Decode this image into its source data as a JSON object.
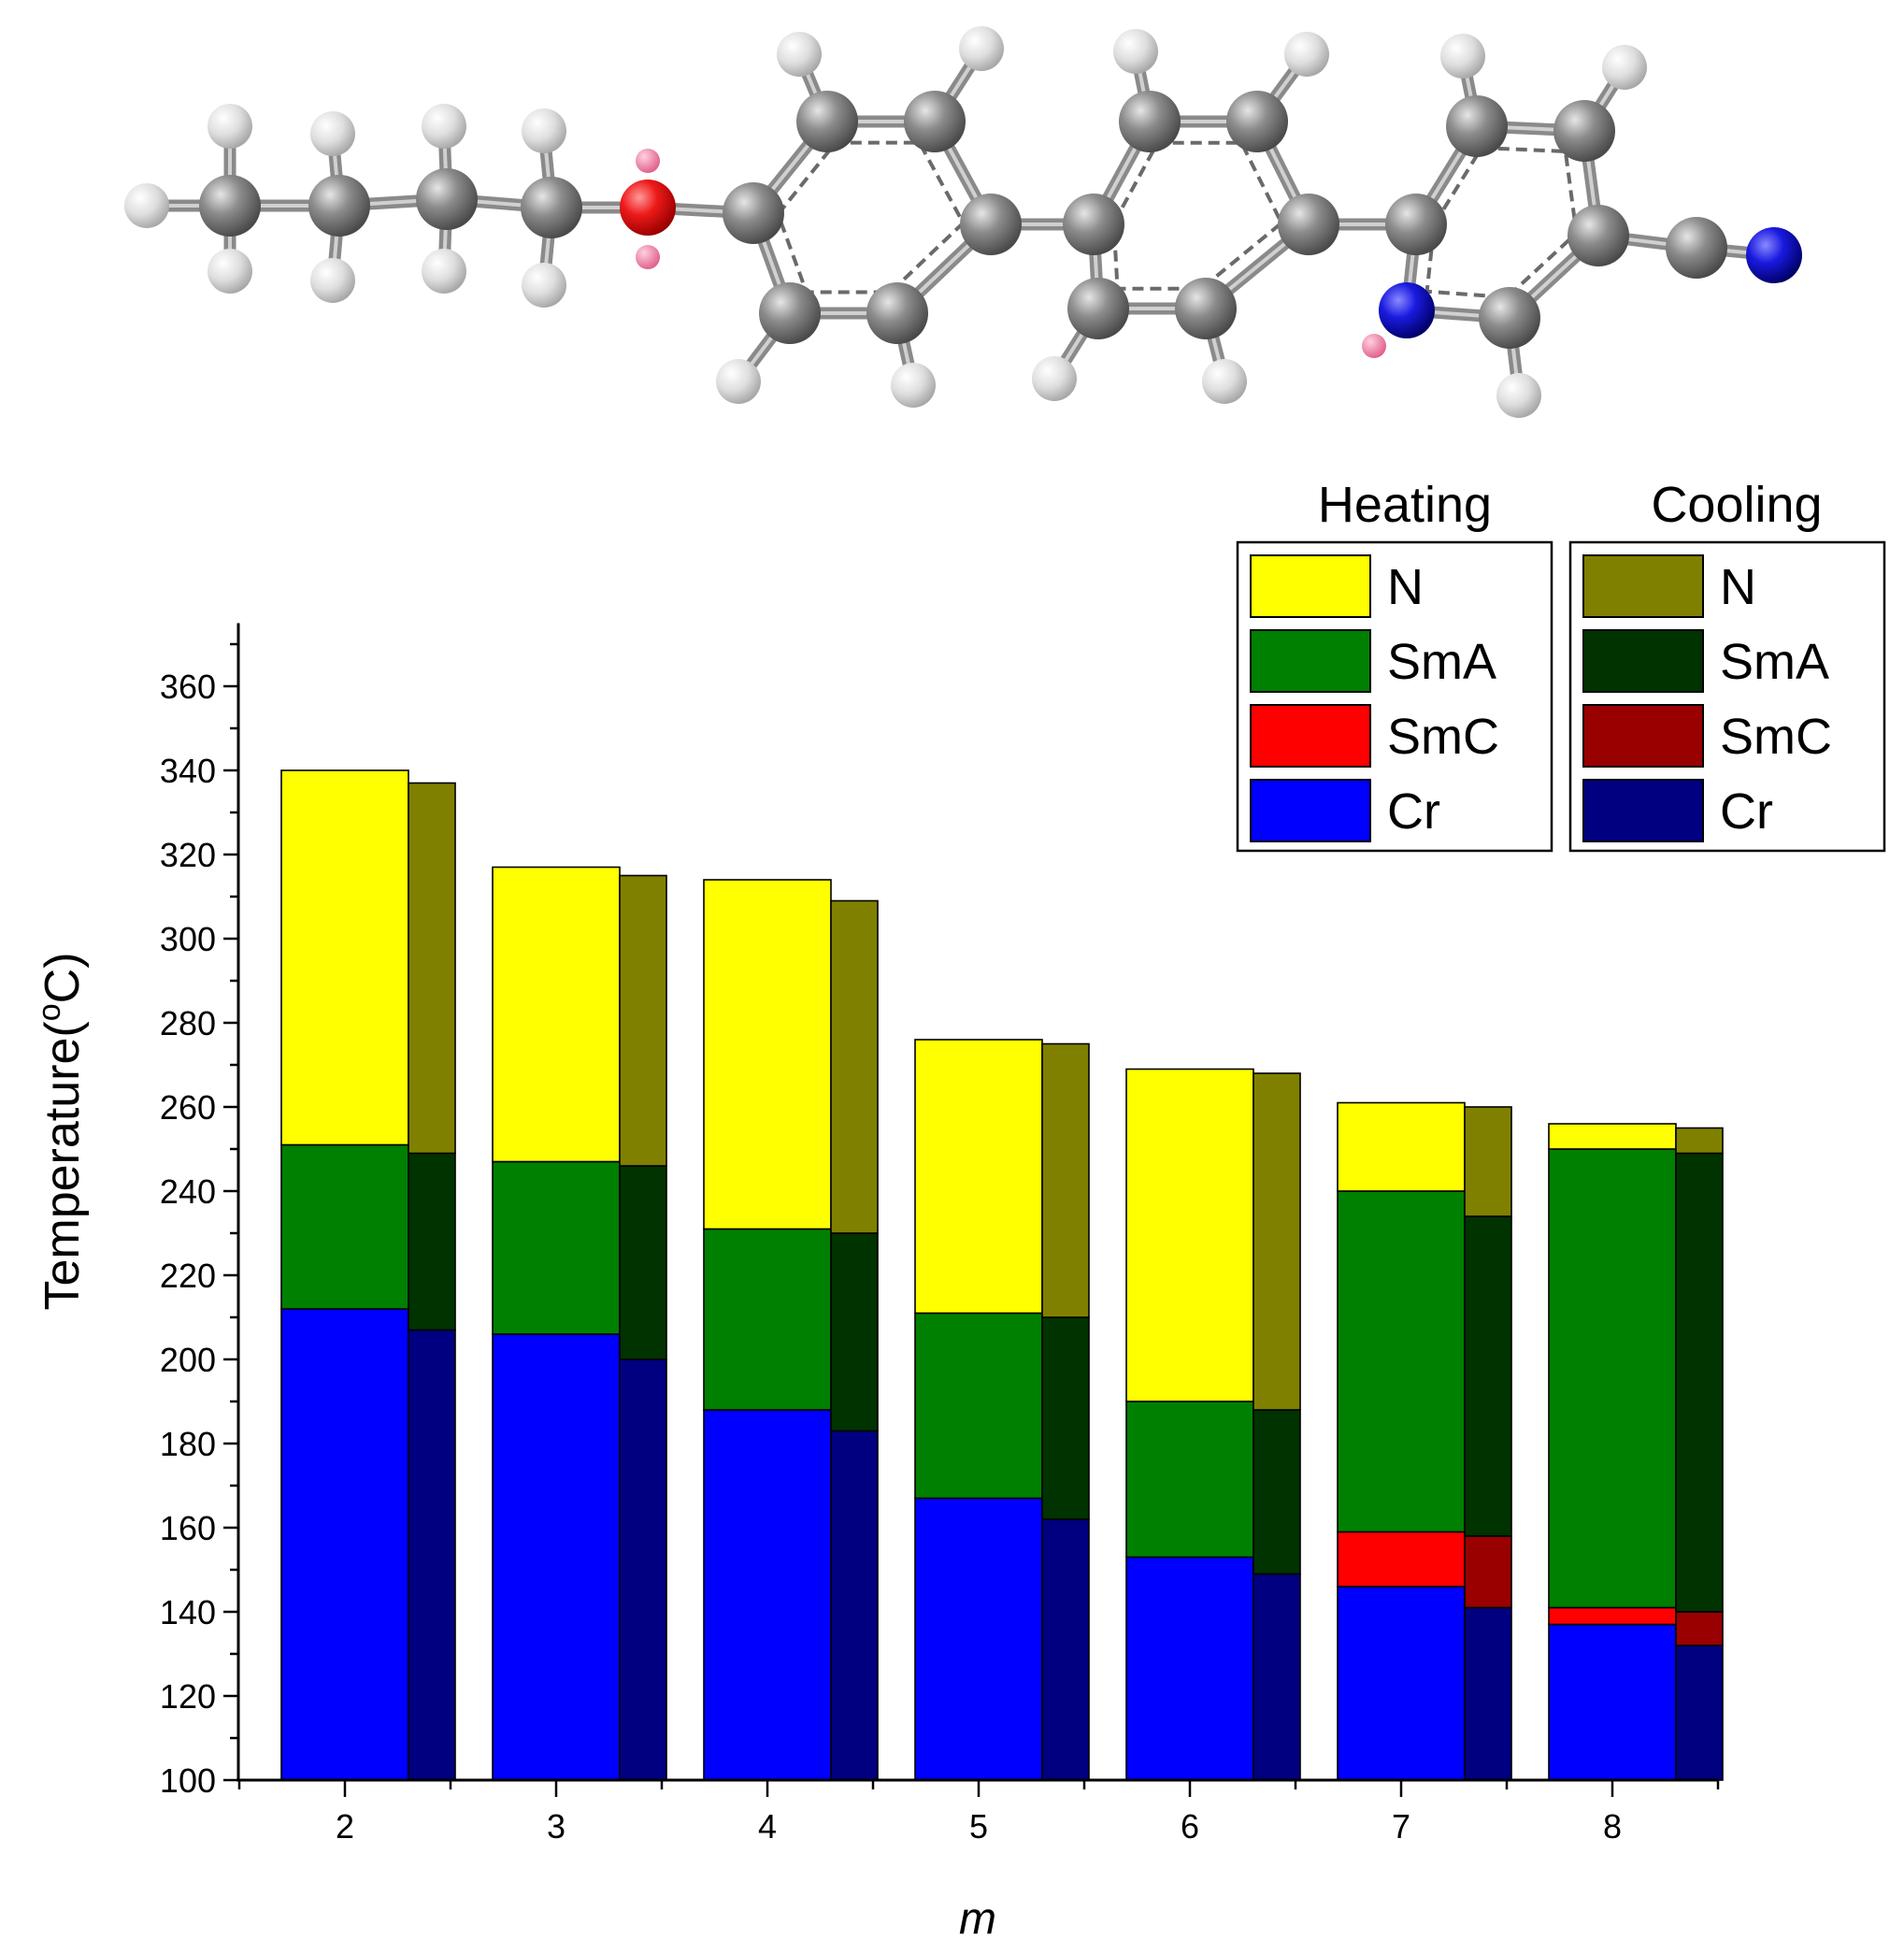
{
  "chart_data": {
    "type": "bar",
    "subtype": "stacked paired bars (heating / cooling) showing phase ranges",
    "title": "",
    "xlabel": "m",
    "ylabel": "Temperature(°C)",
    "ylabel_parts": {
      "prefix": "Temperature(",
      "superscript": "o",
      "suffix": "C)"
    },
    "ylim": [
      100,
      375
    ],
    "yticks": [
      100,
      120,
      140,
      160,
      180,
      200,
      220,
      240,
      260,
      280,
      300,
      320,
      340,
      360
    ],
    "categories": [
      "2",
      "3",
      "4",
      "5",
      "6",
      "7",
      "8"
    ],
    "grid": false,
    "legend_placement": "top-right",
    "phases": [
      "N",
      "SmA",
      "SmC",
      "Cr"
    ],
    "groups": [
      {
        "name": "Heating",
        "colors": {
          "N": "#ffff00",
          "SmA": "#008000",
          "SmC": "#ff0000",
          "Cr": "#0000ff"
        },
        "transitions": [
          {
            "m": "2",
            "Cr": 212,
            "SmC": 212,
            "SmA": 251,
            "N": 340
          },
          {
            "m": "3",
            "Cr": 206,
            "SmC": 206,
            "SmA": 247,
            "N": 317
          },
          {
            "m": "4",
            "Cr": 188,
            "SmC": 188,
            "SmA": 231,
            "N": 314
          },
          {
            "m": "5",
            "Cr": 167,
            "SmC": 167,
            "SmA": 211,
            "N": 276
          },
          {
            "m": "6",
            "Cr": 153,
            "SmC": 153,
            "SmA": 190,
            "N": 269
          },
          {
            "m": "7",
            "Cr": 146,
            "SmC": 159,
            "SmA": 240,
            "N": 261
          },
          {
            "m": "8",
            "Cr": 137,
            "SmC": 141,
            "SmA": 250,
            "N": 256
          }
        ]
      },
      {
        "name": "Cooling",
        "colors": {
          "N": "#808000",
          "SmA": "#003300",
          "SmC": "#990000",
          "Cr": "#000080"
        },
        "transitions": [
          {
            "m": "2",
            "Cr": 207,
            "SmC": 207,
            "SmA": 249,
            "N": 337
          },
          {
            "m": "3",
            "Cr": 200,
            "SmC": 200,
            "SmA": 246,
            "N": 315
          },
          {
            "m": "4",
            "Cr": 183,
            "SmC": 183,
            "SmA": 230,
            "N": 309
          },
          {
            "m": "5",
            "Cr": 162,
            "SmC": 162,
            "SmA": 210,
            "N": 275
          },
          {
            "m": "6",
            "Cr": 149,
            "SmC": 149,
            "SmA": 188,
            "N": 268
          },
          {
            "m": "7",
            "Cr": 141,
            "SmC": 158,
            "SmA": 234,
            "N": 260
          },
          {
            "m": "8",
            "Cr": 132,
            "SmC": 140,
            "SmA": 249,
            "N": 255
          }
        ]
      }
    ]
  },
  "molecule": {
    "colors": {
      "carbon": "#7a7a7a",
      "hydrogen": "#d8d8d8",
      "oxygen": "#e01010",
      "nitrogen": "#1010c0",
      "lone_pair": "#f080a8",
      "bond": "#9a9a9a"
    }
  }
}
